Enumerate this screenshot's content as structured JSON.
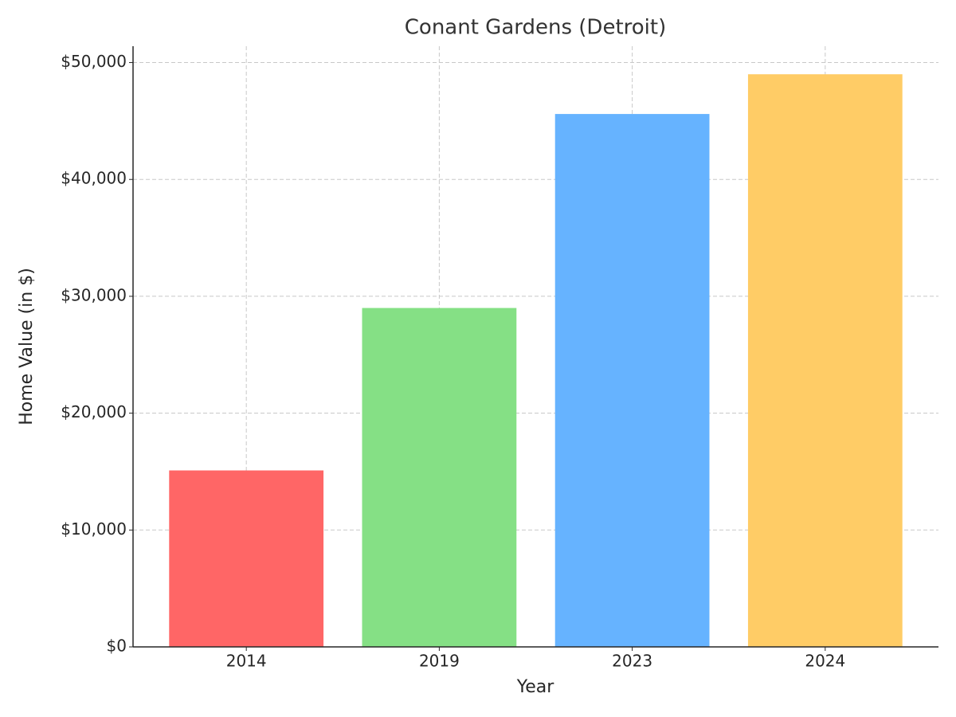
{
  "chart_data": {
    "type": "bar",
    "title": "Conant Gardens (Detroit)",
    "x_label": "Year",
    "y_label": "Home Value (in $)",
    "categories": [
      "2014",
      "2019",
      "2023",
      "2024"
    ],
    "values": [
      15100,
      29000,
      45600,
      49000
    ],
    "colors": [
      "#ff6666",
      "#85e085",
      "#66b3ff",
      "#ffcc66"
    ],
    "ylim": [
      0,
      51400
    ],
    "yticks": [
      {
        "value": 0,
        "label": "$0"
      },
      {
        "value": 10000,
        "label": "$10,000"
      },
      {
        "value": 20000,
        "label": "$20,000"
      },
      {
        "value": 30000,
        "label": "$30,000"
      },
      {
        "value": 40000,
        "label": "$40,000"
      },
      {
        "value": 50000,
        "label": "$50,000"
      }
    ],
    "grid": true
  }
}
